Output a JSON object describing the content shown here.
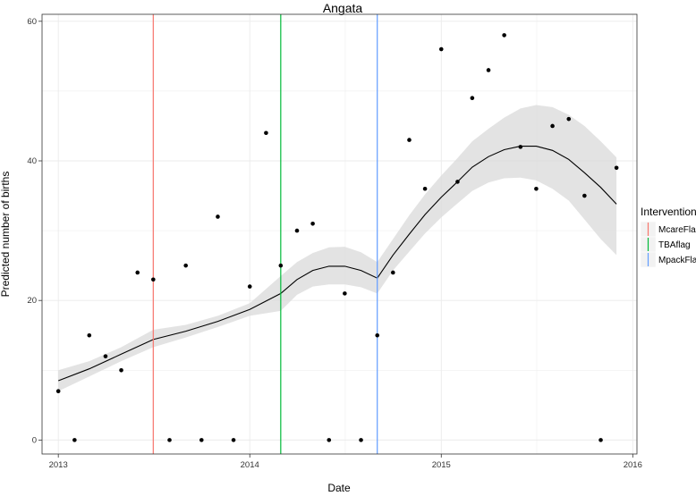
{
  "chart_data": {
    "type": "scatter",
    "title": "Angata",
    "xlabel": "Date",
    "ylabel": "Predicted number of births",
    "x_ticks": [
      "2013",
      "2014",
      "2015",
      "2016"
    ],
    "y_ticks": [
      "0",
      "20",
      "40",
      "60"
    ],
    "xlim": [
      "2012-12-01",
      "2016-01-09"
    ],
    "ylim": [
      -2,
      61
    ],
    "grid": true,
    "legend": {
      "title": "Intervention",
      "placement": "right",
      "entries": [
        {
          "label": "McareFlag",
          "color": "#F8766D",
          "date": "2013-07-01"
        },
        {
          "label": "TBAflag",
          "color": "#00BA38",
          "date": "2014-03-01"
        },
        {
          "label": "MpackFlag",
          "color": "#619CFF",
          "date": "2014-09-01"
        }
      ]
    },
    "points": [
      {
        "x": "2013-01-01",
        "y": 7
      },
      {
        "x": "2013-02-01",
        "y": 0
      },
      {
        "x": "2013-03-01",
        "y": 15
      },
      {
        "x": "2013-04-01",
        "y": 12
      },
      {
        "x": "2013-05-01",
        "y": 10
      },
      {
        "x": "2013-06-01",
        "y": 24
      },
      {
        "x": "2013-07-01",
        "y": 23
      },
      {
        "x": "2013-08-01",
        "y": 0
      },
      {
        "x": "2013-09-01",
        "y": 25
      },
      {
        "x": "2013-10-01",
        "y": 0
      },
      {
        "x": "2013-11-01",
        "y": 32
      },
      {
        "x": "2013-12-01",
        "y": 0
      },
      {
        "x": "2014-01-01",
        "y": 22
      },
      {
        "x": "2014-02-01",
        "y": 44
      },
      {
        "x": "2014-03-01",
        "y": 25
      },
      {
        "x": "2014-04-01",
        "y": 30
      },
      {
        "x": "2014-05-01",
        "y": 31
      },
      {
        "x": "2014-06-01",
        "y": 0
      },
      {
        "x": "2014-07-01",
        "y": 21
      },
      {
        "x": "2014-08-01",
        "y": 0
      },
      {
        "x": "2014-09-01",
        "y": 15
      },
      {
        "x": "2014-10-01",
        "y": 24
      },
      {
        "x": "2014-11-01",
        "y": 43
      },
      {
        "x": "2014-12-01",
        "y": 36
      },
      {
        "x": "2015-01-01",
        "y": 56
      },
      {
        "x": "2015-02-01",
        "y": 37
      },
      {
        "x": "2015-03-01",
        "y": 49
      },
      {
        "x": "2015-04-01",
        "y": 53
      },
      {
        "x": "2015-05-01",
        "y": 58
      },
      {
        "x": "2015-06-01",
        "y": 42
      },
      {
        "x": "2015-07-01",
        "y": 36
      },
      {
        "x": "2015-08-01",
        "y": 45
      },
      {
        "x": "2015-09-01",
        "y": 46
      },
      {
        "x": "2015-10-01",
        "y": 35
      },
      {
        "x": "2015-11-01",
        "y": 0
      },
      {
        "x": "2015-12-01",
        "y": 39
      }
    ],
    "fit_line": [
      {
        "x": "2013-01-01",
        "y": 8.5,
        "lo": 7.0,
        "hi": 10.0
      },
      {
        "x": "2013-03-01",
        "y": 10.2,
        "lo": 9.1,
        "hi": 11.3
      },
      {
        "x": "2013-05-01",
        "y": 12.3,
        "lo": 11.3,
        "hi": 13.3
      },
      {
        "x": "2013-07-01",
        "y": 14.4,
        "lo": 13.3,
        "hi": 15.8
      },
      {
        "x": "2013-09-01",
        "y": 15.6,
        "lo": 14.7,
        "hi": 16.5
      },
      {
        "x": "2013-11-01",
        "y": 17.0,
        "lo": 16.2,
        "hi": 17.8
      },
      {
        "x": "2014-01-01",
        "y": 18.7,
        "lo": 17.8,
        "hi": 19.6
      },
      {
        "x": "2014-03-01",
        "y": 21.0,
        "lo": 18.5,
        "hi": 23.5
      },
      {
        "x": "2014-04-01",
        "y": 23.0,
        "lo": 20.8,
        "hi": 25.5
      },
      {
        "x": "2014-05-01",
        "y": 24.3,
        "lo": 22.0,
        "hi": 26.8
      },
      {
        "x": "2014-06-01",
        "y": 24.9,
        "lo": 22.3,
        "hi": 27.6
      },
      {
        "x": "2014-07-01",
        "y": 24.9,
        "lo": 22.3,
        "hi": 27.7
      },
      {
        "x": "2014-08-01",
        "y": 24.3,
        "lo": 21.9,
        "hi": 26.9
      },
      {
        "x": "2014-09-01",
        "y": 23.2,
        "lo": 21.0,
        "hi": 25.5
      },
      {
        "x": "2014-10-01",
        "y": 26.5,
        "lo": 24.3,
        "hi": 28.8
      },
      {
        "x": "2014-11-01",
        "y": 29.5,
        "lo": 27.0,
        "hi": 32.2
      },
      {
        "x": "2014-12-01",
        "y": 32.3,
        "lo": 29.6,
        "hi": 35.2
      },
      {
        "x": "2015-01-01",
        "y": 34.8,
        "lo": 31.9,
        "hi": 37.9
      },
      {
        "x": "2015-02-01",
        "y": 37.0,
        "lo": 33.9,
        "hi": 40.4
      },
      {
        "x": "2015-03-01",
        "y": 39.1,
        "lo": 35.7,
        "hi": 42.8
      },
      {
        "x": "2015-04-01",
        "y": 40.6,
        "lo": 36.9,
        "hi": 44.6
      },
      {
        "x": "2015-05-01",
        "y": 41.6,
        "lo": 37.5,
        "hi": 46.2
      },
      {
        "x": "2015-06-01",
        "y": 42.1,
        "lo": 37.6,
        "hi": 47.5
      },
      {
        "x": "2015-07-01",
        "y": 42.1,
        "lo": 37.2,
        "hi": 48.0
      },
      {
        "x": "2015-08-01",
        "y": 41.5,
        "lo": 36.0,
        "hi": 47.7
      },
      {
        "x": "2015-09-01",
        "y": 40.2,
        "lo": 34.3,
        "hi": 46.6
      },
      {
        "x": "2015-10-01",
        "y": 38.3,
        "lo": 31.6,
        "hi": 45.0
      },
      {
        "x": "2015-11-01",
        "y": 36.2,
        "lo": 28.8,
        "hi": 42.8
      },
      {
        "x": "2015-12-01",
        "y": 33.8,
        "lo": 26.5,
        "hi": 40.5
      }
    ],
    "colors": {
      "points": "#000000",
      "fit_line": "#000000",
      "ribbon": "#d9d9d9",
      "grid": "#ebebeb",
      "panel_border": "#333333"
    }
  }
}
